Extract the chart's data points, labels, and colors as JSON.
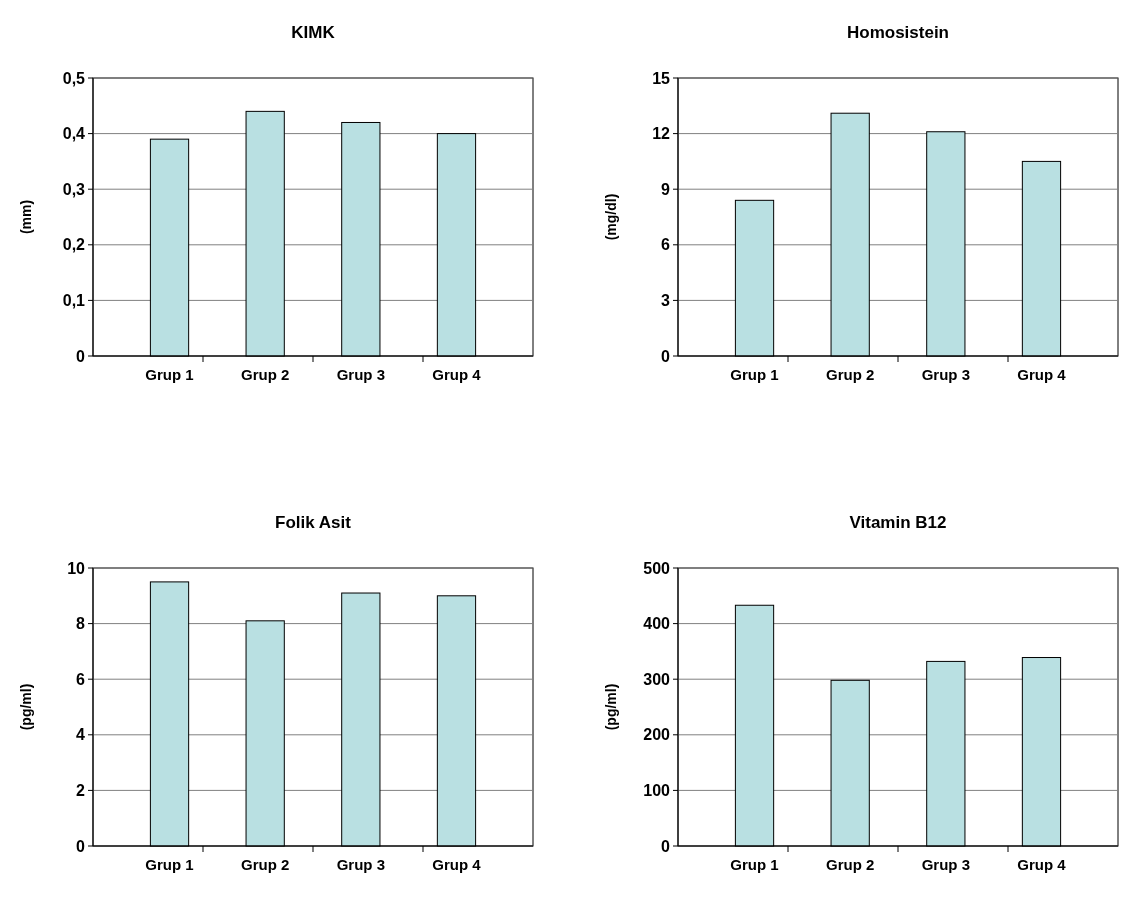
{
  "chart_data": [
    {
      "type": "bar",
      "title": "KIMK",
      "ylabel": "(mm)",
      "categories": [
        "Grup 1",
        "Grup 2",
        "Grup 3",
        "Grup 4"
      ],
      "values": [
        0.39,
        0.44,
        0.42,
        0.4
      ],
      "color": "#b9e0e2",
      "ylim": [
        0,
        0.5
      ],
      "yticks": [
        0,
        {
          "value": 0.1,
          "label": "0,1"
        },
        {
          "value": 0.2,
          "label": "0,2"
        },
        {
          "value": 0.3,
          "label": "0,3"
        },
        {
          "value": 0.4,
          "label": "0,4"
        },
        {
          "value": 0.5,
          "label": "0,5"
        }
      ],
      "grid": "y"
    },
    {
      "type": "bar",
      "title": "Homosistein",
      "ylabel": "(mg/dl)",
      "categories": [
        "Grup 1",
        "Grup 2",
        "Grup 3",
        "Grup 4"
      ],
      "values": [
        8.4,
        13.1,
        12.1,
        10.5
      ],
      "color": "#b9e0e2",
      "ylim": [
        0,
        15
      ],
      "yticks": [
        0,
        3,
        6,
        9,
        12,
        15
      ],
      "grid": "y"
    },
    {
      "type": "bar",
      "title": "Folik Asit",
      "ylabel": "(pg/ml)",
      "categories": [
        "Grup 1",
        "Grup 2",
        "Grup 3",
        "Grup 4"
      ],
      "values": [
        9.5,
        8.1,
        9.1,
        9.0
      ],
      "color": "#b9e0e2",
      "ylim": [
        0,
        10
      ],
      "yticks": [
        0,
        2,
        4,
        6,
        8,
        10
      ],
      "grid": "y"
    },
    {
      "type": "bar",
      "title": "Vitamin B12",
      "ylabel": "(pg/ml)",
      "categories": [
        "Grup 1",
        "Grup 2",
        "Grup 3",
        "Grup 4"
      ],
      "values": [
        433,
        298,
        332,
        339
      ],
      "color": "#b9e0e2",
      "ylim": [
        0,
        500
      ],
      "yticks": [
        0,
        100,
        200,
        300,
        400,
        500
      ],
      "grid": "y"
    }
  ]
}
